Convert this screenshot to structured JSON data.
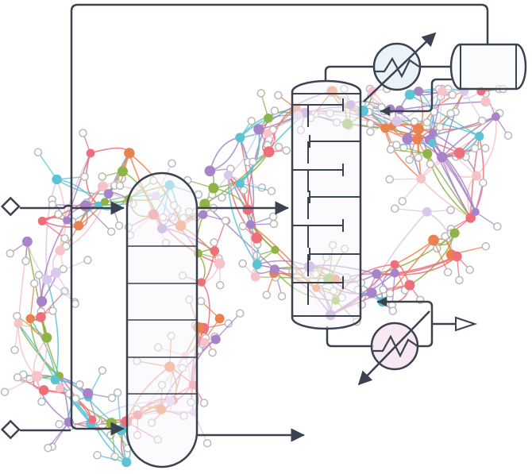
{
  "diagram": {
    "type": "process-flow-diagram-with-network-overlay",
    "colors": {
      "line": "#3b4250",
      "vessel_fill": "#f7f8fb",
      "exchanger_fill": "#e6f1f8",
      "exchanger_fill_bottom": "#f7e4ee",
      "node_outline": "#b9b9b9",
      "purple": "#a784c9",
      "red": "#ee6e7a",
      "cyan": "#5bc3d3",
      "green": "#8fb347",
      "orange": "#e9824e",
      "light_pink": "#f6c3c9",
      "light_purple": "#d9c8ea"
    },
    "components": [
      {
        "name": "feed-valve-top",
        "icon": "diamond-icon"
      },
      {
        "name": "feed-valve-bottom",
        "icon": "diamond-icon"
      },
      {
        "name": "reactor-vessel",
        "icon": "vertical-vessel-icon",
        "internal_trays": 5
      },
      {
        "name": "distillation-column",
        "icon": "tray-column-icon",
        "trays": 6
      },
      {
        "name": "condenser",
        "icon": "heat-exchanger-icon"
      },
      {
        "name": "reboiler",
        "icon": "heat-exchanger-icon"
      },
      {
        "name": "reflux-drum",
        "icon": "horizontal-drum-icon"
      },
      {
        "name": "product-outlet",
        "icon": "open-triangle-arrow-icon"
      }
    ]
  }
}
